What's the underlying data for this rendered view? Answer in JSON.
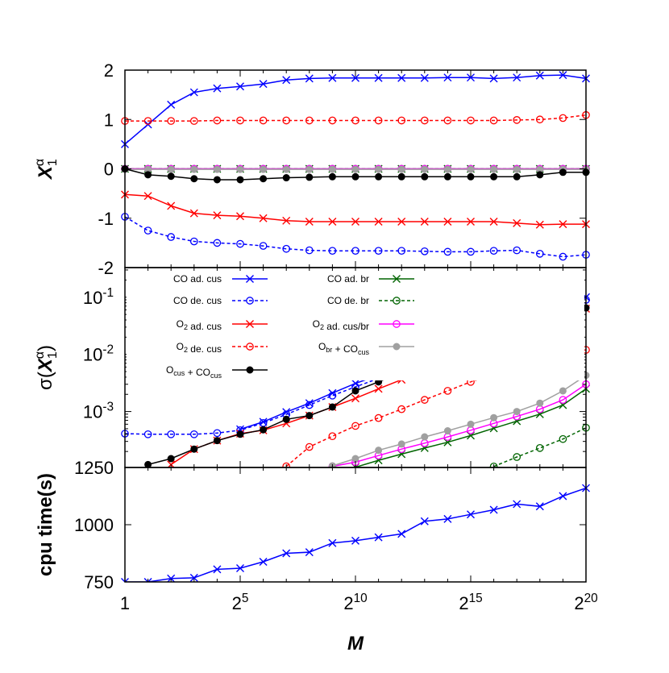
{
  "chart_data": [
    {
      "type": "line",
      "panel": "top",
      "ylabel": "X_1^α",
      "ylim": [
        -2,
        2
      ],
      "yticks": [
        {
          "value": 2,
          "label": "2"
        },
        {
          "value": 1,
          "label": "1"
        },
        {
          "value": 0,
          "label": "0"
        },
        {
          "value": -1,
          "label": "-1"
        },
        {
          "value": -2,
          "label": "-2"
        }
      ],
      "x_exponents": [
        0,
        1,
        2,
        3,
        4,
        5,
        6,
        7,
        8,
        9,
        10,
        11,
        12,
        13,
        14,
        15,
        16,
        17,
        18,
        19,
        20
      ],
      "series": [
        {
          "key": "co_ad_cus",
          "color": "#0000ff",
          "marker": "x",
          "dash": "solid",
          "values": [
            0.5,
            0.9,
            1.3,
            1.55,
            1.63,
            1.67,
            1.72,
            1.8,
            1.83,
            1.84,
            1.84,
            1.84,
            1.84,
            1.84,
            1.85,
            1.85,
            1.83,
            1.85,
            1.89,
            1.9,
            1.83
          ]
        },
        {
          "key": "co_de_cus",
          "color": "#0000ff",
          "marker": "o",
          "dash": "dashed",
          "values": [
            -0.97,
            -1.25,
            -1.38,
            -1.47,
            -1.5,
            -1.52,
            -1.56,
            -1.62,
            -1.65,
            -1.66,
            -1.66,
            -1.66,
            -1.66,
            -1.67,
            -1.68,
            -1.68,
            -1.66,
            -1.65,
            -1.72,
            -1.78,
            -1.74
          ]
        },
        {
          "key": "o2_ad_cus",
          "color": "#ff0000",
          "marker": "x",
          "dash": "solid",
          "values": [
            -0.52,
            -0.55,
            -0.75,
            -0.9,
            -0.94,
            -0.96,
            -1.0,
            -1.05,
            -1.07,
            -1.07,
            -1.07,
            -1.07,
            -1.07,
            -1.07,
            -1.07,
            -1.07,
            -1.07,
            -1.1,
            -1.13,
            -1.12,
            -1.12
          ]
        },
        {
          "key": "o2_de_cus",
          "color": "#ff0000",
          "marker": "o",
          "dash": "dashed",
          "values": [
            0.97,
            0.97,
            0.97,
            0.97,
            0.98,
            0.98,
            0.98,
            0.98,
            0.98,
            0.98,
            0.98,
            0.98,
            0.98,
            0.98,
            0.98,
            0.98,
            0.98,
            0.99,
            1.0,
            1.03,
            1.09
          ]
        },
        {
          "key": "co_ad_br",
          "color": "#006400",
          "marker": "x",
          "dash": "solid",
          "values": [
            0,
            0,
            0,
            0,
            0,
            0,
            0,
            0,
            0,
            0,
            0,
            0,
            0,
            0,
            0,
            0,
            0,
            0,
            0,
            0,
            0
          ]
        },
        {
          "key": "co_de_br",
          "color": "#006400",
          "marker": "o",
          "dash": "dashed",
          "values": [
            0,
            0,
            0,
            0,
            0,
            0,
            0,
            0,
            0,
            0,
            0,
            0,
            0,
            0,
            0,
            0,
            0,
            0,
            0,
            0,
            0
          ]
        },
        {
          "key": "o2_ad_cusbr",
          "color": "#ff00ff",
          "marker": "o",
          "dash": "solid",
          "values": [
            0,
            0,
            0,
            0,
            0,
            0,
            0,
            0,
            0,
            0,
            0,
            0,
            0,
            0,
            0,
            0,
            0,
            0,
            0,
            0,
            0
          ]
        },
        {
          "key": "obr_cocus",
          "color": "#a0a0a0",
          "marker": "dot",
          "dash": "solid",
          "values": [
            -0.01,
            -0.01,
            -0.01,
            -0.01,
            -0.01,
            -0.01,
            -0.01,
            -0.01,
            -0.01,
            -0.01,
            -0.01,
            -0.01,
            -0.01,
            -0.01,
            -0.01,
            -0.01,
            -0.01,
            -0.01,
            -0.01,
            -0.01,
            -0.01
          ]
        },
        {
          "key": "ocus_cocus",
          "color": "#000000",
          "marker": "dot",
          "dash": "solid",
          "values": [
            0,
            -0.12,
            -0.15,
            -0.2,
            -0.22,
            -0.22,
            -0.2,
            -0.18,
            -0.17,
            -0.16,
            -0.16,
            -0.16,
            -0.16,
            -0.16,
            -0.16,
            -0.16,
            -0.16,
            -0.16,
            -0.12,
            -0.07,
            -0.07
          ]
        }
      ]
    },
    {
      "type": "line",
      "panel": "middle",
      "ylabel": "σ(X_1^α)",
      "yscale": "log",
      "ylim": [
        0.000105,
        0.33
      ],
      "yticks": [
        {
          "value": 0.1,
          "base": "10",
          "exp": "-1"
        },
        {
          "value": 0.01,
          "base": "10",
          "exp": "-2"
        },
        {
          "value": 0.001,
          "base": "10",
          "exp": "-3"
        }
      ],
      "legend": {
        "placement": "top",
        "entries": [
          {
            "series": "co_ad_cus",
            "parts": [
              {
                "t": "CO ad. cus"
              }
            ]
          },
          {
            "series": "co_de_cus",
            "parts": [
              {
                "t": "CO de. cus"
              }
            ]
          },
          {
            "series": "o2_ad_cus",
            "parts": [
              {
                "t": "O"
              },
              {
                "t": "2",
                "sub": true
              },
              {
                "t": " ad. cus"
              }
            ]
          },
          {
            "series": "o2_de_cus",
            "parts": [
              {
                "t": "O"
              },
              {
                "t": "2",
                "sub": true
              },
              {
                "t": " de. cus"
              }
            ]
          },
          {
            "series": "ocus_cocus",
            "parts": [
              {
                "t": "O"
              },
              {
                "t": "cus",
                "sub": true
              },
              {
                "t": " + CO"
              },
              {
                "t": "cus",
                "sub": true
              }
            ]
          },
          {
            "series": "co_ad_br",
            "parts": [
              {
                "t": "CO ad. br"
              }
            ]
          },
          {
            "series": "co_de_br",
            "parts": [
              {
                "t": "CO de. br"
              }
            ]
          },
          {
            "series": "o2_ad_cusbr",
            "parts": [
              {
                "t": "O"
              },
              {
                "t": "2",
                "sub": true
              },
              {
                "t": " ad. cus/br"
              }
            ]
          },
          {
            "series": "obr_cocus",
            "parts": [
              {
                "t": "O"
              },
              {
                "t": "br",
                "sub": true
              },
              {
                "t": " + CO"
              },
              {
                "t": "cus",
                "sub": true
              }
            ]
          }
        ]
      },
      "series": [
        {
          "key": "co_ad_cus",
          "color": "#0000ff",
          "marker": "x",
          "dash": "solid",
          "x_exponents": [
            5,
            6,
            7,
            8,
            9,
            10,
            11,
            12,
            13,
            14,
            15,
            16,
            17,
            18,
            19,
            20
          ],
          "values": [
            0.00049,
            0.00066,
            0.00098,
            0.0014,
            0.0021,
            0.0031,
            0.0043,
            0.006,
            0.0085,
            0.012,
            0.016,
            0.023,
            0.033,
            0.046,
            0.068,
            0.1
          ]
        },
        {
          "key": "co_de_cus",
          "color": "#0000ff",
          "marker": "o",
          "dash": "dashed",
          "x_exponents": [
            0,
            1,
            2,
            3,
            4,
            5,
            6,
            7,
            8,
            9,
            10,
            11,
            12,
            13,
            14,
            15,
            16,
            17,
            18,
            19,
            20
          ],
          "values": [
            0.00041,
            0.0004,
            0.0004,
            0.0004,
            0.00042,
            0.00047,
            0.00063,
            0.00089,
            0.0013,
            0.0019,
            0.0027,
            0.0038,
            0.0055,
            0.0078,
            0.011,
            0.015,
            0.021,
            0.031,
            0.044,
            0.062,
            0.09
          ]
        },
        {
          "key": "o2_ad_cus",
          "color": "#ff0000",
          "marker": "x",
          "dash": "solid",
          "x_exponents": [
            2,
            3,
            4,
            5,
            6,
            7,
            8,
            9,
            10,
            11,
            12,
            13,
            14,
            15,
            16,
            17,
            18,
            19,
            20
          ],
          "values": [
            0.000118,
            0.00022,
            0.00031,
            0.00041,
            0.00047,
            0.00062,
            0.00085,
            0.0012,
            0.0017,
            0.0025,
            0.0036,
            0.0051,
            0.0072,
            0.01,
            0.014,
            0.02,
            0.029,
            0.041,
            0.063
          ]
        },
        {
          "key": "o2_de_cus",
          "color": "#ff0000",
          "marker": "o",
          "dash": "dashed",
          "x_exponents": [
            7,
            8,
            9,
            10,
            11,
            12,
            13,
            14,
            15,
            16,
            17,
            18,
            19,
            20
          ],
          "values": [
            0.00011,
            0.00024,
            0.00037,
            0.00056,
            0.00077,
            0.0011,
            0.0016,
            0.0023,
            0.0033,
            0.0045,
            0.0065,
            0.0085,
            0.011,
            0.012
          ]
        },
        {
          "key": "ocus_cocus",
          "color": "#000000",
          "marker": "dot",
          "dash": "solid",
          "x_exponents": [
            1,
            2,
            3,
            4,
            5,
            6,
            7,
            8,
            9,
            10,
            11,
            12,
            13,
            14,
            15,
            16,
            17,
            18,
            19,
            20
          ],
          "values": [
            0.000118,
            0.00015,
            0.00022,
            0.00031,
            0.0004,
            0.00048,
            0.00073,
            0.00085,
            0.0012,
            0.0023,
            0.0033,
            0.0048,
            0.0068,
            0.0095,
            0.013,
            0.018,
            0.026,
            0.032,
            0.045,
            0.065
          ]
        },
        {
          "key": "co_ad_br",
          "color": "#006400",
          "marker": "x",
          "dash": "solid",
          "x_exponents": [
            10,
            11,
            12,
            13,
            14,
            15,
            16,
            17,
            18,
            19,
            20
          ],
          "values": [
            0.000106,
            0.00014,
            0.00018,
            0.00023,
            0.00029,
            0.00038,
            0.00051,
            0.00068,
            0.0009,
            0.0013,
            0.0025
          ]
        },
        {
          "key": "co_de_br",
          "color": "#006400",
          "marker": "o",
          "dash": "dashed",
          "x_exponents": [
            16,
            17,
            18,
            19,
            20
          ],
          "values": [
            0.000109,
            0.00016,
            0.00023,
            0.00033,
            0.00052
          ]
        },
        {
          "key": "o2_ad_cusbr",
          "color": "#ff00ff",
          "marker": "o",
          "dash": "solid",
          "x_exponents": [
            9,
            10,
            11,
            12,
            13,
            14,
            15,
            16,
            17,
            18,
            19,
            20
          ],
          "values": [
            0.00011,
            0.00013,
            0.00017,
            0.00022,
            0.00028,
            0.00036,
            0.00047,
            0.00062,
            0.00082,
            0.0011,
            0.0016,
            0.003
          ]
        },
        {
          "key": "obr_cocus",
          "color": "#a0a0a0",
          "marker": "dot",
          "dash": "solid",
          "x_exponents": [
            9,
            10,
            11,
            12,
            13,
            14,
            15,
            16,
            17,
            18,
            19,
            20
          ],
          "values": [
            0.000112,
            0.00015,
            0.00021,
            0.00027,
            0.00036,
            0.00046,
            0.0006,
            0.00078,
            0.001,
            0.0014,
            0.0023,
            0.0043
          ]
        }
      ]
    },
    {
      "type": "line",
      "panel": "bottom",
      "ylabel": "cpu time(s)",
      "ylim": [
        750,
        1250
      ],
      "yticks": [
        {
          "value": 1250,
          "label": "1250"
        },
        {
          "value": 1000,
          "label": "1000"
        },
        {
          "value": 750,
          "label": "750"
        }
      ],
      "xlabel": "M",
      "xticks": [
        {
          "value": 0,
          "base": "1",
          "exp": ""
        },
        {
          "value": 5,
          "base": "2",
          "exp": "5"
        },
        {
          "value": 10,
          "base": "2",
          "exp": "10"
        },
        {
          "value": 15,
          "base": "2",
          "exp": "15"
        },
        {
          "value": 20,
          "base": "2",
          "exp": "20"
        }
      ],
      "series": [
        {
          "key": "cpu_time",
          "color": "#0000ff",
          "marker": "x",
          "dash": "solid",
          "x_exponents": [
            0,
            1,
            2,
            3,
            4,
            5,
            6,
            7,
            8,
            9,
            10,
            11,
            12,
            13,
            14,
            15,
            16,
            17,
            18,
            19,
            20
          ],
          "values": [
            750,
            750,
            765,
            768,
            805,
            810,
            838,
            875,
            880,
            920,
            930,
            945,
            960,
            1015,
            1025,
            1045,
            1065,
            1090,
            1080,
            1125,
            1160
          ]
        }
      ]
    }
  ]
}
